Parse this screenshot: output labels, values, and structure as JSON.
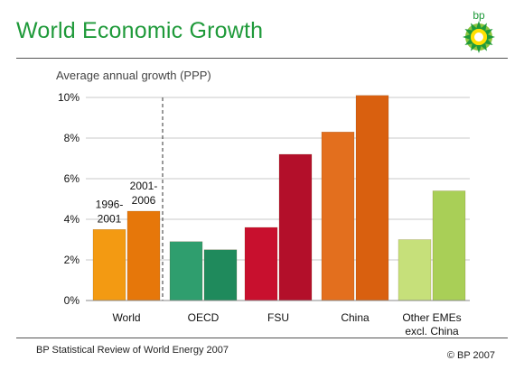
{
  "header": {
    "title": "World Economic Growth"
  },
  "logo": {
    "icon": "bp-helios-icon",
    "text": "bp",
    "color": "#1f9a3a"
  },
  "footer": {
    "source": "BP Statistical Review of World Energy 2007",
    "copyright": "© BP 2007"
  },
  "chart_data": {
    "type": "bar",
    "ylabel": "Average annual growth (PPP)",
    "ylim": [
      0,
      10
    ],
    "yticks": [
      0,
      2,
      4,
      6,
      8,
      10
    ],
    "ytick_suffix": "%",
    "grid": true,
    "categories": [
      {
        "label": [
          "World"
        ],
        "values": [
          3.5,
          4.4
        ],
        "colors": [
          "#f39a12",
          "#e6770a"
        ]
      },
      {
        "label": [
          "OECD"
        ],
        "values": [
          2.9,
          2.5
        ],
        "colors": [
          "#2f9e6e",
          "#1f8a5c"
        ]
      },
      {
        "label": [
          "FSU"
        ],
        "values": [
          3.6,
          7.2
        ],
        "colors": [
          "#c8102e",
          "#b30f2a"
        ]
      },
      {
        "label": [
          "China"
        ],
        "values": [
          8.3,
          10.1
        ],
        "colors": [
          "#e36f1e",
          "#d9600f"
        ]
      },
      {
        "label": [
          "Other EMEs",
          "excl. China"
        ],
        "values": [
          3.0,
          5.4
        ],
        "colors": [
          "#c6e07a",
          "#a9cf57"
        ]
      }
    ],
    "series_annotations": [
      {
        "lines": [
          "1996-",
          "2001"
        ]
      },
      {
        "lines": [
          "2001-",
          "2006"
        ]
      }
    ]
  }
}
